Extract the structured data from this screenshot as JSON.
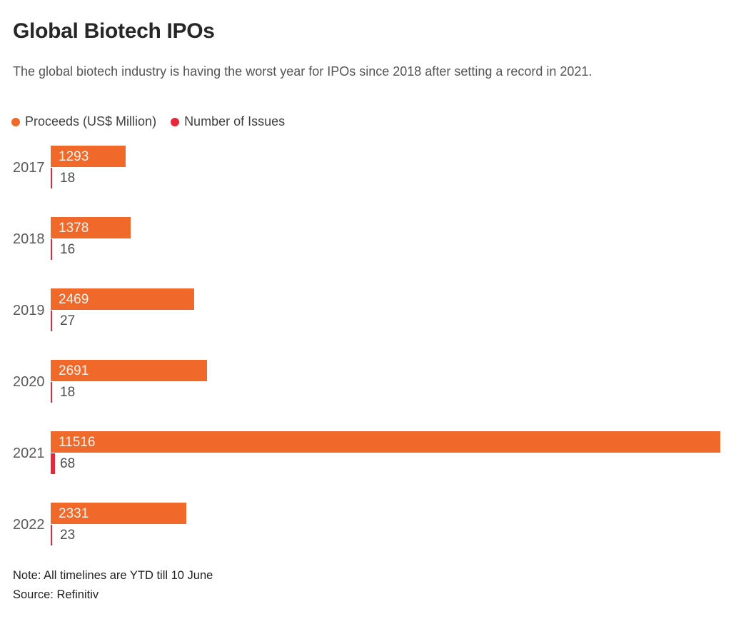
{
  "header": {
    "title": "Global Biotech IPOs",
    "subtitle": "The global biotech industry is having the worst year for IPOs since 2018 after setting a record in 2021."
  },
  "legend": [
    {
      "label": "Proceeds (US$ Million)",
      "color": "#f0682a"
    },
    {
      "label": "Number of Issues",
      "color": "#e9263a"
    }
  ],
  "chart_data": {
    "type": "bar",
    "orientation": "horizontal",
    "title": "Global Biotech IPOs",
    "categories": [
      "2017",
      "2018",
      "2019",
      "2020",
      "2021",
      "2022"
    ],
    "series": [
      {
        "name": "Proceeds (US$ Million)",
        "color": "#f0682a",
        "values": [
          1293,
          1378,
          2469,
          2691,
          11516,
          2331
        ]
      },
      {
        "name": "Number of Issues",
        "color": "#e9263a",
        "values": [
          18,
          16,
          27,
          18,
          68,
          23
        ]
      }
    ],
    "x_max": 11516,
    "grid": false,
    "legend_position": "top",
    "value_labels": "shown"
  },
  "footer": {
    "note": "Note: All timelines are YTD till 10 June",
    "source": "Source: Refinitiv"
  }
}
